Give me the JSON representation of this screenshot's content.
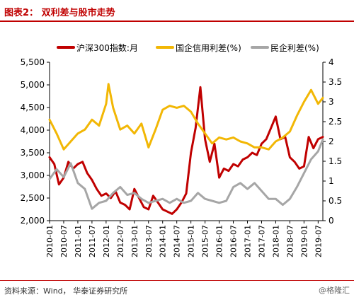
{
  "header": {
    "title": "图表2：  双利差与股市走势"
  },
  "footer": {
    "source": "资料来源：Wind， 华泰证券研究所",
    "watermark": "@格隆汇"
  },
  "colors": {
    "accent": "#c00000",
    "series": [
      "#c00000",
      "#f2b705",
      "#a6a6a6"
    ]
  },
  "chart_data": {
    "type": "line",
    "title": "",
    "legend_position": "top",
    "grid": false,
    "x_tick_labels": [
      "2010-01",
      "2010-07",
      "2011-01",
      "2011-07",
      "2012-01",
      "2012-07",
      "2013-01",
      "2013-07",
      "2014-01",
      "2014-07",
      "2015-01",
      "2015-07",
      "2016-01",
      "2016-07",
      "2017-01",
      "2017-07",
      "2018-01",
      "2018-07",
      "2019-01",
      "2019-07"
    ],
    "x_range": [
      "2010-01",
      "2019-09"
    ],
    "y_left": {
      "ticks": [
        "2,000",
        "2,500",
        "3,000",
        "3,500",
        "4,000",
        "4,500",
        "5,000",
        "5,500"
      ],
      "range": [
        2000,
        5500
      ]
    },
    "y_right": {
      "ticks": [
        "0",
        "0.5",
        "1",
        "1.5",
        "2",
        "2.5",
        "3",
        "3.5",
        "4"
      ],
      "range": [
        0,
        4
      ]
    },
    "series": [
      {
        "name": "沪深300指数:月",
        "axis": "left",
        "color": "#c00000",
        "x": [
          "2010-01",
          "2010-03",
          "2010-05",
          "2010-07",
          "2010-09",
          "2010-11",
          "2011-01",
          "2011-03",
          "2011-05",
          "2011-07",
          "2011-09",
          "2011-11",
          "2012-01",
          "2012-03",
          "2012-05",
          "2012-07",
          "2012-09",
          "2012-11",
          "2013-01",
          "2013-03",
          "2013-05",
          "2013-07",
          "2013-09",
          "2013-11",
          "2014-01",
          "2014-03",
          "2014-05",
          "2014-07",
          "2014-09",
          "2014-11",
          "2015-01",
          "2015-03",
          "2015-05",
          "2015-07",
          "2015-09",
          "2015-11",
          "2016-01",
          "2016-03",
          "2016-05",
          "2016-07",
          "2016-09",
          "2016-11",
          "2017-01",
          "2017-03",
          "2017-05",
          "2017-07",
          "2017-09",
          "2017-11",
          "2018-01",
          "2018-03",
          "2018-05",
          "2018-07",
          "2018-09",
          "2018-11",
          "2019-01",
          "2019-03",
          "2019-05",
          "2019-07",
          "2019-09"
        ],
        "values": [
          3400,
          3250,
          2800,
          2950,
          3300,
          3150,
          3250,
          3300,
          3050,
          2900,
          2700,
          2550,
          2600,
          2500,
          2650,
          2400,
          2350,
          2250,
          2700,
          2500,
          2300,
          2250,
          2550,
          2400,
          2250,
          2200,
          2150,
          2250,
          2400,
          2600,
          3500,
          4050,
          4950,
          3800,
          3300,
          3700,
          2950,
          3150,
          3100,
          3250,
          3200,
          3350,
          3400,
          3500,
          3450,
          3700,
          3800,
          4050,
          4300,
          3800,
          3850,
          3400,
          3300,
          3150,
          3200,
          3850,
          3600,
          3800,
          3850
        ]
      },
      {
        "name": "国企信用利差(%)",
        "axis": "right",
        "color": "#f2b705",
        "x": [
          "2010-01",
          "2010-04",
          "2010-07",
          "2010-10",
          "2011-01",
          "2011-04",
          "2011-07",
          "2011-10",
          "2012-01",
          "2012-02",
          "2012-04",
          "2012-07",
          "2012-10",
          "2013-01",
          "2013-04",
          "2013-07",
          "2013-10",
          "2014-01",
          "2014-04",
          "2014-07",
          "2014-10",
          "2015-01",
          "2015-04",
          "2015-07",
          "2015-10",
          "2016-01",
          "2016-04",
          "2016-07",
          "2016-10",
          "2017-01",
          "2017-04",
          "2017-07",
          "2017-10",
          "2018-01",
          "2018-04",
          "2018-07",
          "2018-10",
          "2019-01",
          "2019-04",
          "2019-07",
          "2019-09"
        ],
        "values": [
          2.55,
          2.2,
          1.8,
          2.0,
          2.2,
          2.3,
          2.55,
          2.4,
          2.95,
          3.45,
          2.85,
          2.3,
          2.4,
          2.2,
          2.45,
          1.85,
          2.3,
          2.8,
          2.9,
          2.85,
          2.9,
          2.75,
          2.45,
          2.2,
          1.95,
          2.1,
          2.05,
          2.1,
          2.0,
          1.95,
          1.85,
          1.85,
          1.8,
          2.0,
          2.1,
          2.25,
          2.65,
          3.0,
          3.3,
          2.95,
          3.1
        ]
      },
      {
        "name": "民企利差(%)",
        "axis": "right",
        "color": "#a6a6a6",
        "x": [
          "2010-01",
          "2010-04",
          "2010-07",
          "2010-10",
          "2011-01",
          "2011-04",
          "2011-07",
          "2011-10",
          "2012-01",
          "2012-04",
          "2012-07",
          "2012-10",
          "2013-01",
          "2013-04",
          "2013-07",
          "2013-10",
          "2014-01",
          "2014-04",
          "2014-07",
          "2014-10",
          "2015-01",
          "2015-04",
          "2015-07",
          "2015-10",
          "2016-01",
          "2016-04",
          "2016-07",
          "2016-10",
          "2017-01",
          "2017-04",
          "2017-07",
          "2017-10",
          "2018-01",
          "2018-04",
          "2018-07",
          "2018-10",
          "2019-01",
          "2019-04",
          "2019-07",
          "2019-09"
        ],
        "values": [
          1.05,
          1.3,
          1.1,
          1.45,
          0.95,
          0.8,
          0.3,
          0.45,
          0.5,
          0.7,
          0.85,
          0.65,
          0.7,
          0.55,
          0.45,
          0.5,
          0.55,
          0.45,
          0.55,
          0.45,
          0.5,
          0.7,
          0.55,
          0.5,
          0.45,
          0.5,
          0.85,
          0.95,
          0.8,
          0.95,
          0.75,
          0.55,
          0.55,
          0.4,
          0.55,
          0.85,
          1.2,
          1.55,
          1.75,
          2.05
        ]
      }
    ]
  }
}
